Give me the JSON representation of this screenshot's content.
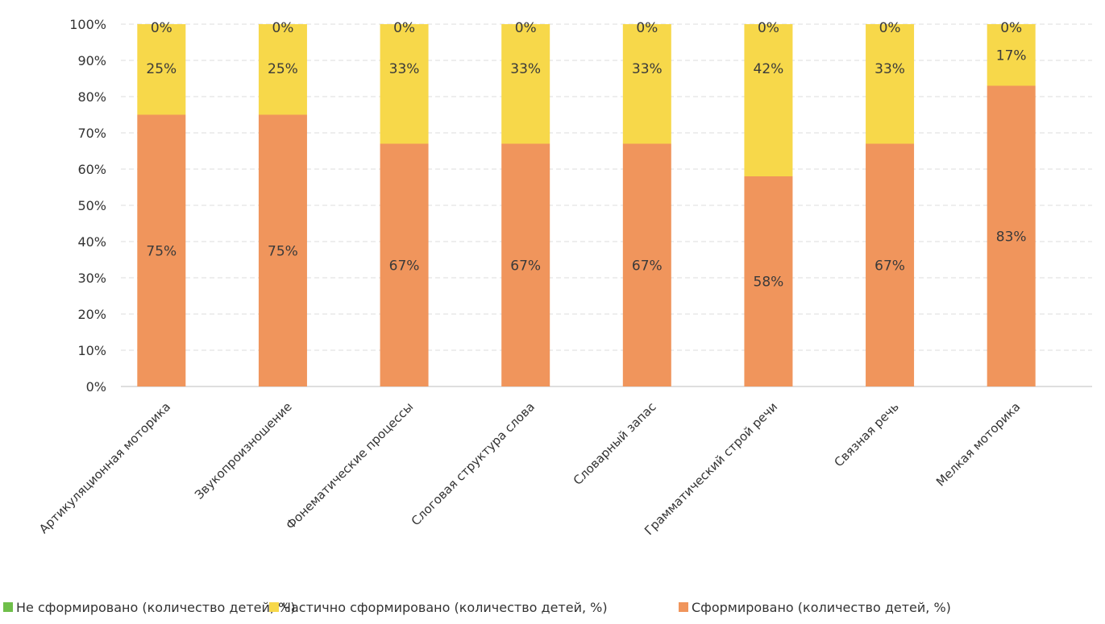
{
  "chart_data": {
    "type": "bar",
    "stacked": true,
    "percent_stacked": true,
    "categories": [
      "Артикуляционная моторика",
      "Звукопроизношение",
      "Фонематические процессы",
      "Слоговая структура слова",
      "Словарный запас",
      "Грамматический строй речи",
      "Связная речь",
      "Мелкая моторика"
    ],
    "series": [
      {
        "name": "Сформировано (количество детей, %)",
        "color": "#f0955c",
        "values": [
          75,
          75,
          67,
          67,
          67,
          58,
          67,
          83
        ],
        "labels": [
          "75%",
          "75%",
          "67%",
          "67%",
          "67%",
          "58%",
          "67%",
          "83%"
        ]
      },
      {
        "name": "Частично сформировано (количество детей, %)",
        "color": "#f7d84a",
        "values": [
          25,
          25,
          33,
          33,
          33,
          42,
          33,
          17
        ],
        "labels": [
          "25%",
          "25%",
          "33%",
          "33%",
          "33%",
          "42%",
          "33%",
          "17%"
        ]
      },
      {
        "name": "Не сформировано (количество детей, %)",
        "color": "#6fbf4a",
        "values": [
          0,
          0,
          0,
          0,
          0,
          0,
          0,
          0
        ],
        "labels": [
          "0%",
          "0%",
          "0%",
          "0%",
          "0%",
          "0%",
          "0%",
          "0%"
        ]
      }
    ],
    "legend_order": [
      2,
      1,
      0
    ],
    "y_ticks": [
      "0%",
      "10%",
      "20%",
      "30%",
      "40%",
      "50%",
      "60%",
      "70%",
      "80%",
      "90%",
      "100%"
    ],
    "ylim": [
      0,
      100
    ],
    "grid": true,
    "legend_position": "bottom",
    "title": "",
    "xlabel": "",
    "ylabel": ""
  }
}
